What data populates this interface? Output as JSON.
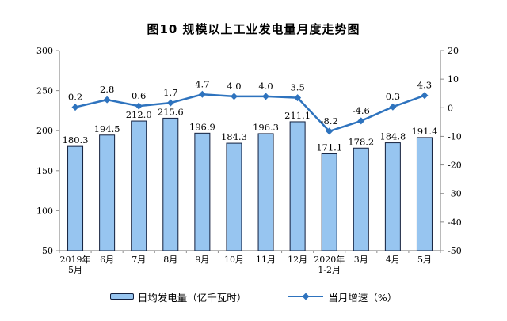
{
  "title": "图10 规模以上工业发电量月度走势图",
  "legend": {
    "bar_label": "日均发电量（亿千瓦时）",
    "line_label": "当月增速（%）"
  },
  "chart_data": {
    "type": "bar+line",
    "title": "图10 规模以上工业发电量月度走势图",
    "categories": [
      "2019年\n5月",
      "6月",
      "7月",
      "8月",
      "9月",
      "10月",
      "11月",
      "12月",
      "2020年\n1-2月",
      "3月",
      "4月",
      "5月"
    ],
    "series": [
      {
        "name": "日均发电量（亿千瓦时）",
        "type": "bar",
        "axis": "left",
        "values": [
          180.3,
          194.5,
          212.0,
          215.6,
          196.9,
          184.3,
          196.3,
          211.1,
          171.1,
          178.2,
          184.8,
          191.4
        ]
      },
      {
        "name": "当月增速（%）",
        "type": "line",
        "axis": "right",
        "values": [
          0.2,
          2.8,
          0.6,
          1.7,
          4.7,
          4.0,
          4.0,
          3.5,
          -8.2,
          -4.6,
          0.3,
          4.3
        ]
      }
    ],
    "left_axis": {
      "min": 50,
      "max": 300,
      "step": 50
    },
    "right_axis": {
      "min": -50,
      "max": 20,
      "step": 10
    },
    "grid": "off",
    "legend_position": "bottom",
    "colors": {
      "bar_fill": "#97C5F0",
      "bar_stroke": "#121F3D",
      "line": "#2E73BE",
      "axis": "#8C8C8C",
      "text": "#000000"
    }
  }
}
